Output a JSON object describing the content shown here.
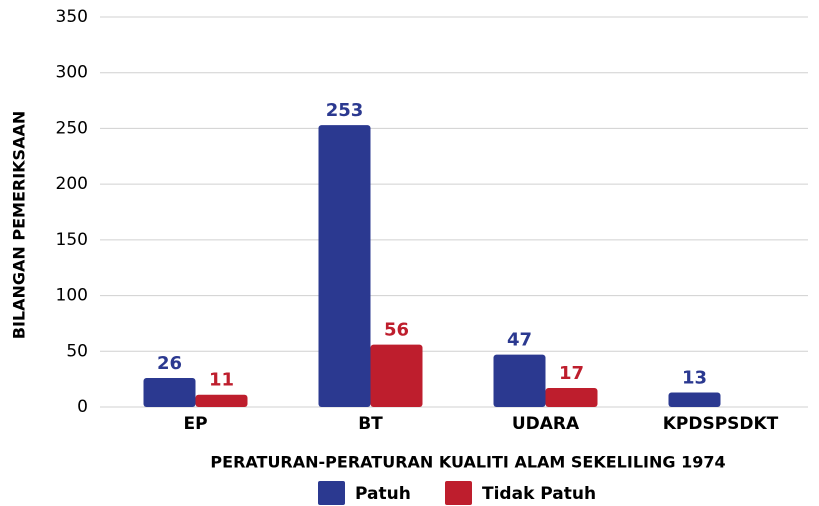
{
  "chart_data": {
    "type": "bar",
    "categories": [
      "EP",
      "BT",
      "UDARA",
      "KPDSPSDKT"
    ],
    "series": [
      {
        "name": "Patuh",
        "color": "#2b3990",
        "values": [
          26,
          253,
          47,
          13
        ]
      },
      {
        "name": "Tidak Patuh",
        "color": "#be1e2d",
        "values": [
          11,
          56,
          17,
          null
        ]
      }
    ],
    "x_label": "PERATURAN-PERATURAN KUALITI ALAM SEKELILING 1974",
    "y_label": "BILANGAN PEMERIKSAAN",
    "ylim": [
      0,
      350
    ],
    "yticks": [
      0,
      50,
      100,
      150,
      200,
      250,
      300,
      350
    ],
    "grid": true,
    "legend": "bottom"
  }
}
